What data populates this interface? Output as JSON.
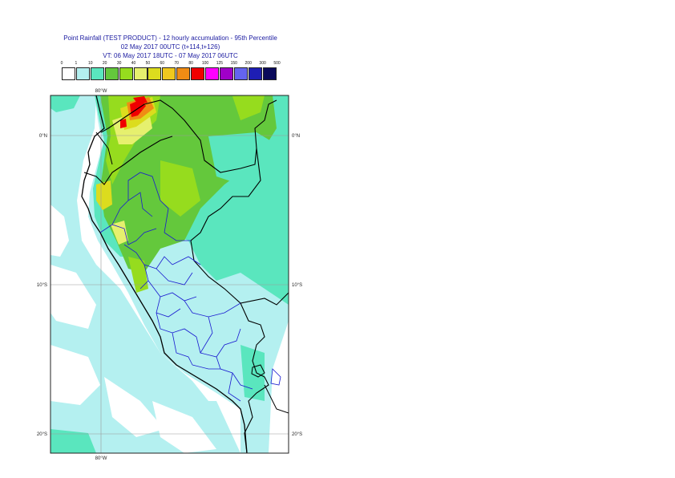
{
  "title": {
    "line1": "Point Rainfall (TEST PRODUCT) - 12 hourly accumulation - 95th Percentile",
    "line2": "02 May 2017 00UTC (t+114,t+126)",
    "line3": "VT: 06 May 2017 18UTC - 07 May 2017 06UTC"
  },
  "legend": {
    "thresholds": [
      "0",
      "1",
      "10",
      "20",
      "30",
      "40",
      "50",
      "60",
      "70",
      "80",
      "100",
      "125",
      "150",
      "200",
      "300",
      "500"
    ],
    "colors": [
      "#ffffff",
      "#b4f0f0",
      "#5ae6be",
      "#64c83c",
      "#96dc1e",
      "#e6f06e",
      "#dcdc1e",
      "#f0c81e",
      "#f08c14",
      "#f00000",
      "#ff00ff",
      "#a000c8",
      "#6464f0",
      "#1e1eb4",
      "#0a0a5a"
    ]
  },
  "axes": {
    "lon_top": "80°W",
    "lon_bottom": "80°W",
    "lat_left": [
      "0°N",
      "10°S",
      "20°S"
    ],
    "lat_right": [
      "0°N",
      "10°S",
      "20°S"
    ]
  }
}
